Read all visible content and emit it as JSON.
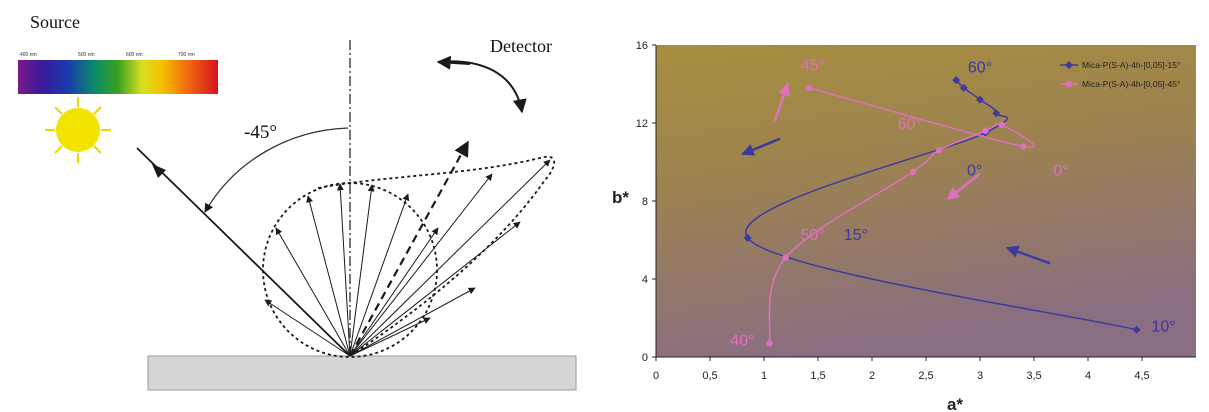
{
  "diagram": {
    "source_label": "Source",
    "detector_label": "Detector",
    "angle_label": "-45°",
    "spectrum_ticks": [
      "400 nm",
      "500 nm",
      "600 nm",
      "700 nm"
    ],
    "colors": {
      "sun": "#f2e400",
      "sun_rays": "#e8d800",
      "substrate": "#d6d6d6",
      "lines": "#1a1a1a"
    }
  },
  "chart_data": {
    "type": "line",
    "xlabel": "a*",
    "ylabel": "b*",
    "xlim": [
      0,
      5
    ],
    "ylim": [
      0,
      16
    ],
    "xticks": [
      "0",
      "0,5",
      "1",
      "1,5",
      "2",
      "2,5",
      "3",
      "3,5",
      "4",
      "4,5"
    ],
    "yticks": [
      "0",
      "4",
      "8",
      "12",
      "16"
    ],
    "background": {
      "top": "#a88f3e",
      "bottom": "#8c6f82"
    },
    "legend_position": "top-right",
    "series": [
      {
        "name": "Mica-P(S-A)-4h-[0,05]-15°",
        "color": "#3b3aa0",
        "marker": "diamond",
        "points": [
          [
            4.45,
            1.4
          ],
          [
            0.85,
            6.1
          ],
          [
            3.05,
            11.5
          ],
          [
            3.15,
            12.5
          ],
          [
            3.0,
            13.2
          ],
          [
            2.85,
            13.8
          ],
          [
            2.78,
            14.2
          ]
        ],
        "angle_labels": [
          {
            "text": "10°",
            "x": 4.7,
            "y": 1.3
          },
          {
            "text": "15°",
            "x": 1.85,
            "y": 6.0
          },
          {
            "text": "0°",
            "x": 2.95,
            "y": 9.3
          },
          {
            "text": "60°",
            "x": 3.0,
            "y": 14.6
          }
        ]
      },
      {
        "name": "Mica-P(S-A)-4h-[0,05]-45°",
        "color": "#e070c0",
        "marker": "circle",
        "points": [
          [
            1.05,
            0.7
          ],
          [
            1.2,
            5.1
          ],
          [
            2.38,
            9.5
          ],
          [
            2.62,
            10.6
          ],
          [
            3.05,
            11.6
          ],
          [
            3.2,
            11.9
          ],
          [
            3.4,
            10.8
          ],
          [
            1.42,
            13.8
          ]
        ],
        "angle_labels": [
          {
            "text": "40°",
            "x": 0.8,
            "y": 0.6
          },
          {
            "text": "50°",
            "x": 1.45,
            "y": 6.0
          },
          {
            "text": "60°",
            "x": 2.35,
            "y": 11.7
          },
          {
            "text": "0°",
            "x": 3.75,
            "y": 9.3
          },
          {
            "text": "45°",
            "x": 1.45,
            "y": 14.7
          }
        ]
      }
    ]
  }
}
